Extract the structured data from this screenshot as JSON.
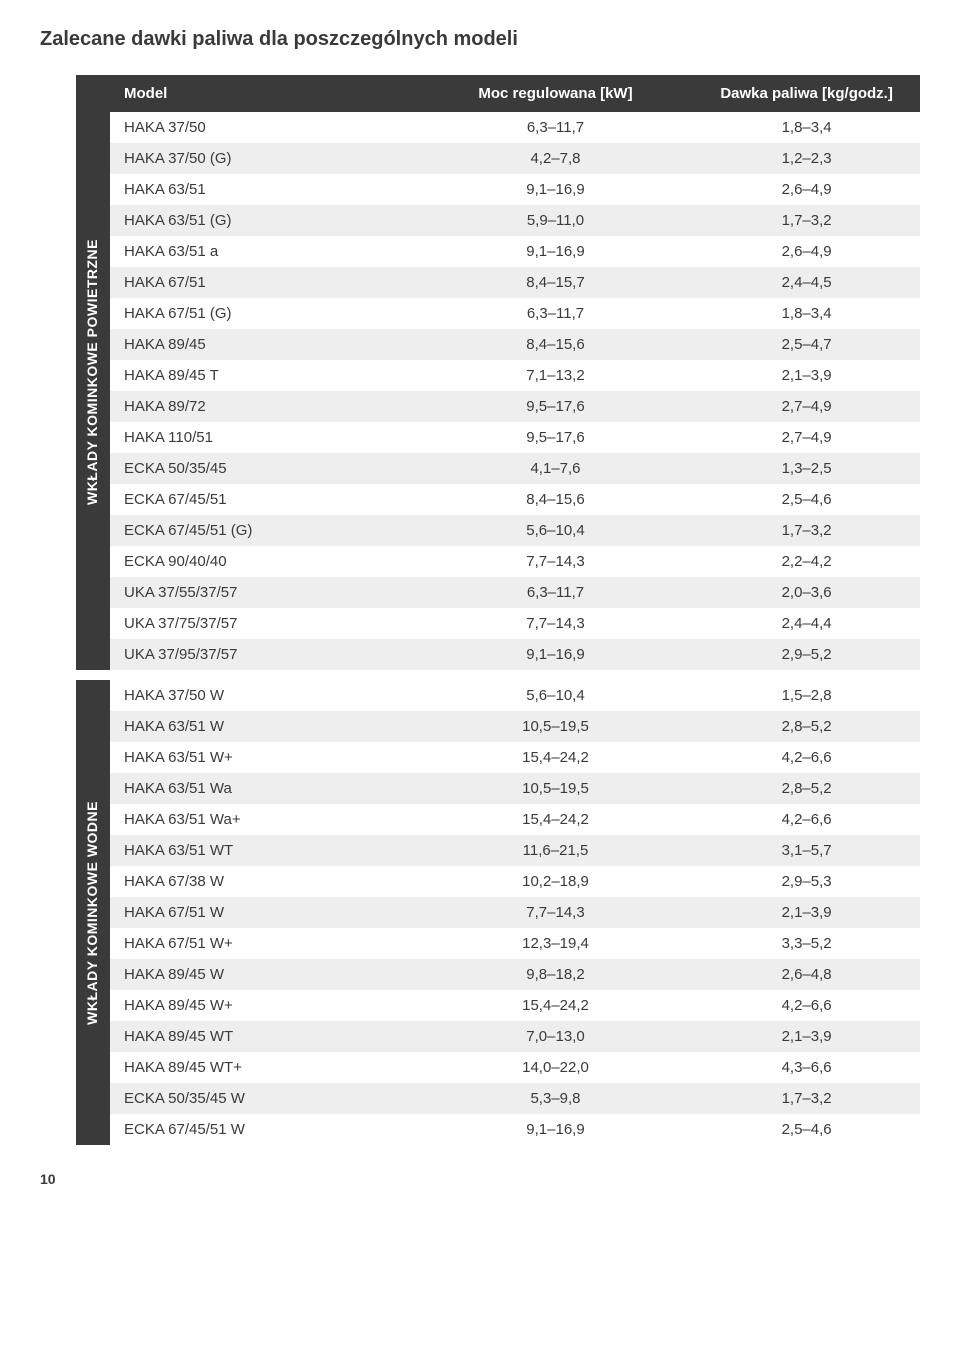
{
  "title": "Zalecane dawki paliwa dla poszczególnych modeli",
  "columns": {
    "c1": "Model",
    "c2": "Moc regulowana [kW]",
    "c3": "Dawka paliwa [kg/godz.]"
  },
  "section1": {
    "label": "WKŁADY KOMINKOWE\nPOWIETRZNE",
    "rows": [
      {
        "model": "HAKA 37/50",
        "kw": "6,3–11,7",
        "dose": "1,8–3,4"
      },
      {
        "model": "HAKA 37/50 (G)",
        "kw": "4,2–7,8",
        "dose": "1,2–2,3"
      },
      {
        "model": "HAKA 63/51",
        "kw": "9,1–16,9",
        "dose": "2,6–4,9"
      },
      {
        "model": "HAKA 63/51 (G)",
        "kw": "5,9–11,0",
        "dose": "1,7–3,2"
      },
      {
        "model": "HAKA 63/51 a",
        "kw": "9,1–16,9",
        "dose": "2,6–4,9"
      },
      {
        "model": "HAKA 67/51",
        "kw": "8,4–15,7",
        "dose": "2,4–4,5"
      },
      {
        "model": "HAKA 67/51 (G)",
        "kw": "6,3–11,7",
        "dose": "1,8–3,4"
      },
      {
        "model": "HAKA 89/45",
        "kw": "8,4–15,6",
        "dose": "2,5–4,7"
      },
      {
        "model": "HAKA 89/45 T",
        "kw": "7,1–13,2",
        "dose": "2,1–3,9"
      },
      {
        "model": "HAKA 89/72",
        "kw": "9,5–17,6",
        "dose": "2,7–4,9"
      },
      {
        "model": "HAKA 110/51",
        "kw": "9,5–17,6",
        "dose": "2,7–4,9"
      },
      {
        "model": "ECKA 50/35/45",
        "kw": "4,1–7,6",
        "dose": "1,3–2,5"
      },
      {
        "model": "ECKA 67/45/51",
        "kw": "8,4–15,6",
        "dose": "2,5–4,6"
      },
      {
        "model": "ECKA 67/45/51 (G)",
        "kw": "5,6–10,4",
        "dose": "1,7–3,2"
      },
      {
        "model": "ECKA 90/40/40",
        "kw": "7,7–14,3",
        "dose": "2,2–4,2"
      },
      {
        "model": "UKA 37/55/37/57",
        "kw": "6,3–11,7",
        "dose": "2,0–3,6"
      },
      {
        "model": "UKA 37/75/37/57",
        "kw": "7,7–14,3",
        "dose": "2,4–4,4"
      },
      {
        "model": "UKA 37/95/37/57",
        "kw": "9,1–16,9",
        "dose": "2,9–5,2"
      }
    ]
  },
  "section2": {
    "label": "WKŁADY\nKOMINKOWE WODNE",
    "rows": [
      {
        "model": "HAKA 37/50 W",
        "kw": "5,6–10,4",
        "dose": "1,5–2,8"
      },
      {
        "model": "HAKA 63/51 W",
        "kw": "10,5–19,5",
        "dose": "2,8–5,2"
      },
      {
        "model": "HAKA 63/51 W+",
        "kw": "15,4–24,2",
        "dose": "4,2–6,6"
      },
      {
        "model": "HAKA 63/51 Wa",
        "kw": "10,5–19,5",
        "dose": "2,8–5,2"
      },
      {
        "model": "HAKA 63/51 Wa+",
        "kw": "15,4–24,2",
        "dose": "4,2–6,6"
      },
      {
        "model": "HAKA 63/51 WT",
        "kw": "11,6–21,5",
        "dose": "3,1–5,7"
      },
      {
        "model": "HAKA 67/38 W",
        "kw": "10,2–18,9",
        "dose": "2,9–5,3"
      },
      {
        "model": "HAKA 67/51 W",
        "kw": "7,7–14,3",
        "dose": "2,1–3,9"
      },
      {
        "model": "HAKA 67/51 W+",
        "kw": "12,3–19,4",
        "dose": "3,3–5,2"
      },
      {
        "model": "HAKA 89/45 W",
        "kw": "9,8–18,2",
        "dose": "2,6–4,8"
      },
      {
        "model": "HAKA 89/45 W+",
        "kw": "15,4–24,2",
        "dose": "4,2–6,6"
      },
      {
        "model": "HAKA 89/45 WT",
        "kw": "7,0–13,0",
        "dose": "2,1–3,9"
      },
      {
        "model": "HAKA 89/45 WT+",
        "kw": "14,0–22,0",
        "dose": "4,3–6,6"
      },
      {
        "model": "ECKA 50/35/45 W",
        "kw": "5,3–9,8",
        "dose": "1,7–3,2"
      },
      {
        "model": "ECKA 67/45/51 W",
        "kw": "9,1–16,9",
        "dose": "2,5–4,6"
      }
    ]
  },
  "page_number": "10",
  "style": {
    "header_bg": "#3a3a3a",
    "header_fg": "#ffffff",
    "row_even_bg": "#eeeeee",
    "row_odd_bg": "#ffffff",
    "text_color": "#3a3a3a",
    "title_fontsize": 20,
    "body_fontsize": 15
  }
}
